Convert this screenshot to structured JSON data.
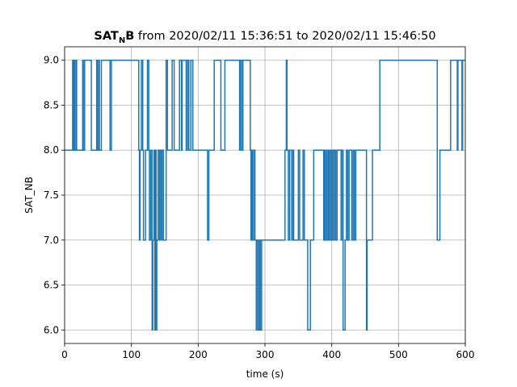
{
  "chart_data": {
    "type": "line",
    "title_bold": "SAT",
    "title_subscript": "N",
    "title_bold_suffix": "B",
    "title_rest": " from 2020/02/11 15:36:51 to 2020/02/11 15:46:50",
    "xlabel": "time (s)",
    "ylabel": "SAT_NB",
    "xlim": [
      0,
      600
    ],
    "ylim": [
      5.85,
      9.15
    ],
    "x_ticks": [
      0,
      100,
      200,
      300,
      400,
      500,
      600
    ],
    "y_ticks": [
      6.0,
      6.5,
      7.0,
      7.5,
      8.0,
      8.5,
      9.0
    ],
    "x_tick_labels": [
      "0",
      "100",
      "200",
      "300",
      "400",
      "500",
      "600"
    ],
    "y_tick_labels": [
      "6.0",
      "6.5",
      "7.0",
      "7.5",
      "8.0",
      "8.5",
      "9.0"
    ],
    "grid": true,
    "step": "post",
    "series": [
      {
        "color": "#1f77b4",
        "points": [
          [
            0,
            8
          ],
          [
            12,
            9
          ],
          [
            13,
            8
          ],
          [
            14,
            9
          ],
          [
            15,
            8
          ],
          [
            17,
            9
          ],
          [
            18,
            8
          ],
          [
            27,
            9
          ],
          [
            28,
            8
          ],
          [
            30,
            9
          ],
          [
            40,
            8
          ],
          [
            48,
            9
          ],
          [
            49,
            8
          ],
          [
            51,
            9
          ],
          [
            52,
            8
          ],
          [
            55,
            9
          ],
          [
            68,
            8
          ],
          [
            70,
            9
          ],
          [
            111,
            8
          ],
          [
            112,
            7
          ],
          [
            113,
            8
          ],
          [
            115,
            9
          ],
          [
            117,
            8
          ],
          [
            118,
            7
          ],
          [
            121,
            8
          ],
          [
            124,
            9
          ],
          [
            126,
            8
          ],
          [
            127,
            7
          ],
          [
            129,
            8
          ],
          [
            131,
            6
          ],
          [
            132,
            7
          ],
          [
            134,
            8
          ],
          [
            135,
            6
          ],
          [
            136,
            8
          ],
          [
            137,
            6
          ],
          [
            138,
            7
          ],
          [
            140,
            8
          ],
          [
            142,
            7
          ],
          [
            143,
            8
          ],
          [
            145,
            7
          ],
          [
            146,
            8
          ],
          [
            148,
            7
          ],
          [
            152,
            9
          ],
          [
            154,
            8
          ],
          [
            161,
            9
          ],
          [
            164,
            8
          ],
          [
            172,
            9
          ],
          [
            175,
            8
          ],
          [
            176,
            9
          ],
          [
            182,
            8
          ],
          [
            184,
            9
          ],
          [
            186,
            8
          ],
          [
            189,
            9
          ],
          [
            192,
            8
          ],
          [
            214,
            7
          ],
          [
            216,
            8
          ],
          [
            224,
            9
          ],
          [
            234,
            8
          ],
          [
            240,
            9
          ],
          [
            262,
            8
          ],
          [
            263,
            9
          ],
          [
            265,
            8
          ],
          [
            267,
            9
          ],
          [
            278,
            8
          ],
          [
            279,
            7
          ],
          [
            280,
            8
          ],
          [
            281,
            7
          ],
          [
            283,
            8
          ],
          [
            285,
            7
          ],
          [
            287,
            6
          ],
          [
            288,
            7
          ],
          [
            290,
            6
          ],
          [
            292,
            7
          ],
          [
            293,
            6
          ],
          [
            295,
            7
          ],
          [
            330,
            8
          ],
          [
            332,
            9
          ],
          [
            333,
            8
          ],
          [
            335,
            7
          ],
          [
            337,
            8
          ],
          [
            340,
            7
          ],
          [
            342,
            8
          ],
          [
            343,
            7
          ],
          [
            350,
            8
          ],
          [
            352,
            7
          ],
          [
            357,
            8
          ],
          [
            359,
            7
          ],
          [
            364,
            6
          ],
          [
            368,
            7
          ],
          [
            373,
            8
          ],
          [
            388,
            7
          ],
          [
            389,
            8
          ],
          [
            390,
            7
          ],
          [
            392,
            8
          ],
          [
            393,
            7
          ],
          [
            395,
            8
          ],
          [
            396,
            7
          ],
          [
            398,
            8
          ],
          [
            399,
            7
          ],
          [
            401,
            8
          ],
          [
            403,
            7
          ],
          [
            404,
            8
          ],
          [
            406,
            7
          ],
          [
            408,
            8
          ],
          [
            414,
            7
          ],
          [
            415,
            8
          ],
          [
            417,
            6
          ],
          [
            420,
            7
          ],
          [
            422,
            8
          ],
          [
            424,
            7
          ],
          [
            426,
            8
          ],
          [
            430,
            7
          ],
          [
            432,
            8
          ],
          [
            434,
            7
          ],
          [
            436,
            8
          ],
          [
            452,
            6
          ],
          [
            453,
            7
          ],
          [
            461,
            8
          ],
          [
            472,
            9
          ],
          [
            558,
            7
          ],
          [
            562,
            8
          ],
          [
            578,
            9
          ],
          [
            588,
            8
          ],
          [
            589,
            9
          ],
          [
            595,
            8
          ],
          [
            596,
            9
          ],
          [
            600,
            9
          ]
        ]
      }
    ]
  }
}
